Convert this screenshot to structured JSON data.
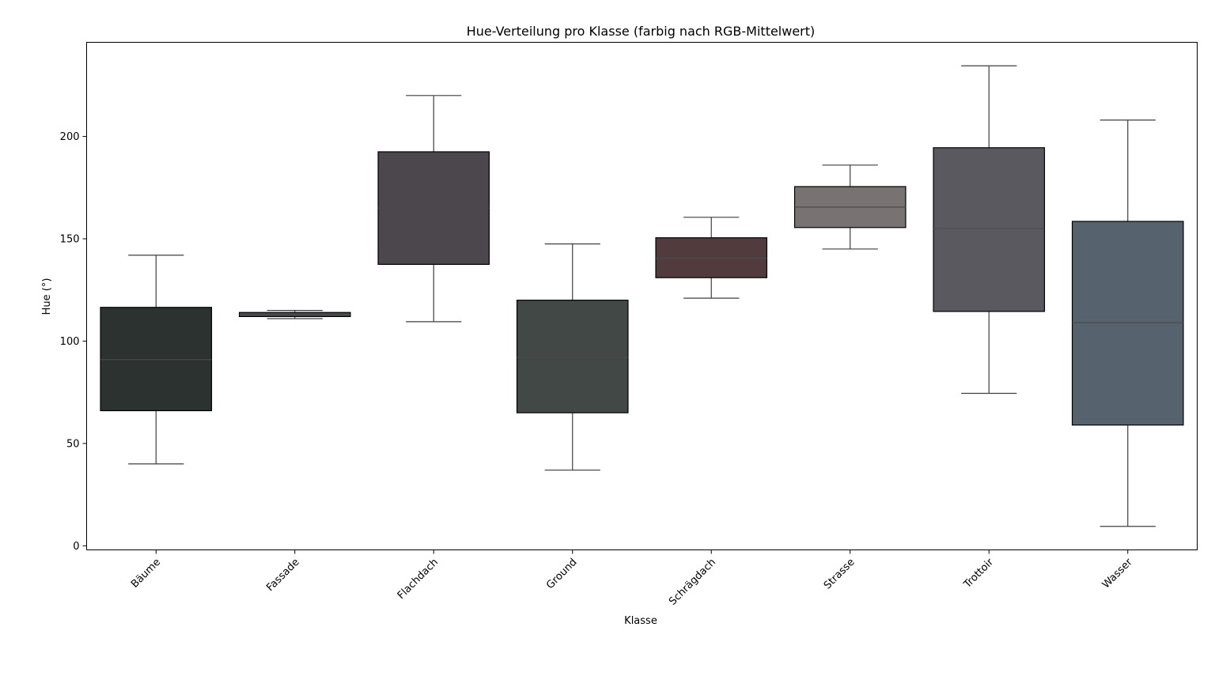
{
  "chart_data": {
    "type": "box",
    "title": "Hue-Verteilung pro Klasse (farbig nach RGB-Mittelwert)",
    "xlabel": "Klasse",
    "ylabel": "Hue (°)",
    "ylim": [
      -2,
      246
    ],
    "yticks": [
      "0",
      "50",
      "100",
      "150",
      "200"
    ],
    "grid": false,
    "categories": [
      "Bäume",
      "Fassade",
      "Flachdach",
      "Ground",
      "Schrägdach",
      "Strasse",
      "Trottoir",
      "Wasser"
    ],
    "boxes": [
      {
        "category": "Bäume",
        "whisker_low": 40,
        "q1": 66,
        "median": 91,
        "q3": 116.5,
        "whisker_high": 142,
        "color": "#2b3230"
      },
      {
        "category": "Fassade",
        "whisker_low": 111,
        "q1": 112,
        "median": 113,
        "q3": 114,
        "whisker_high": 115,
        "color": "#48494b"
      },
      {
        "category": "Flachdach",
        "whisker_low": 109.5,
        "q1": 137.5,
        "median": 165,
        "q3": 192.5,
        "whisker_high": 220,
        "color": "#4b474d"
      },
      {
        "category": "Ground",
        "whisker_low": 37,
        "q1": 65,
        "median": 92,
        "q3": 120,
        "whisker_high": 147.5,
        "color": "#414846"
      },
      {
        "category": "Schrägdach",
        "whisker_low": 121,
        "q1": 131,
        "median": 140.5,
        "q3": 150.5,
        "whisker_high": 160.5,
        "color": "#523b3c"
      },
      {
        "category": "Strasse",
        "whisker_low": 145,
        "q1": 155.5,
        "median": 165.5,
        "q3": 175.5,
        "whisker_high": 186,
        "color": "#797272"
      },
      {
        "category": "Trottoir",
        "whisker_low": 74.5,
        "q1": 114.5,
        "median": 155,
        "q3": 194.5,
        "whisker_high": 234.5,
        "color": "#5a5960"
      },
      {
        "category": "Wasser",
        "whisker_low": 9.5,
        "q1": 59,
        "median": 109,
        "q3": 158.5,
        "whisker_high": 208,
        "color": "#56636f"
      }
    ]
  }
}
